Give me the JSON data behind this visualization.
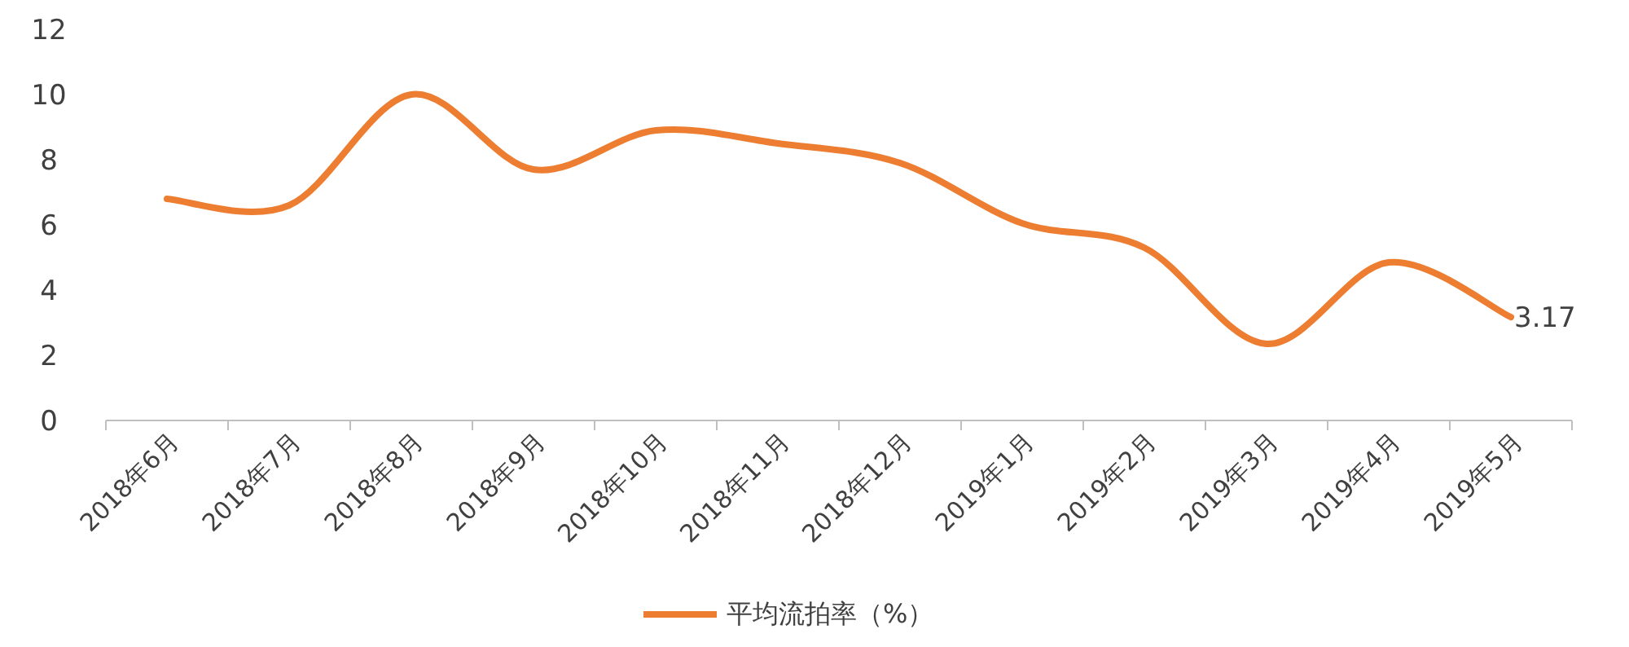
{
  "chart_data": {
    "type": "line",
    "categories": [
      "2018年6月",
      "2018年7月",
      "2018年8月",
      "2018年9月",
      "2018年10月",
      "2018年11月",
      "2018年12月",
      "2019年1月",
      "2019年2月",
      "2019年3月",
      "2019年4月",
      "2019年5月"
    ],
    "series": [
      {
        "name": "平均流拍率（%）",
        "color": "#ed7d31",
        "values": [
          6.8,
          6.6,
          10.0,
          7.7,
          8.9,
          8.5,
          7.9,
          6.05,
          5.3,
          2.35,
          4.85,
          3.17
        ],
        "value_labels": [
          null,
          null,
          null,
          null,
          null,
          null,
          null,
          null,
          null,
          null,
          null,
          "3.17"
        ]
      }
    ],
    "ylim": [
      0,
      12
    ],
    "yticks": [
      0,
      2,
      4,
      6,
      8,
      10,
      12
    ],
    "legend": "bottom",
    "grid": false
  }
}
